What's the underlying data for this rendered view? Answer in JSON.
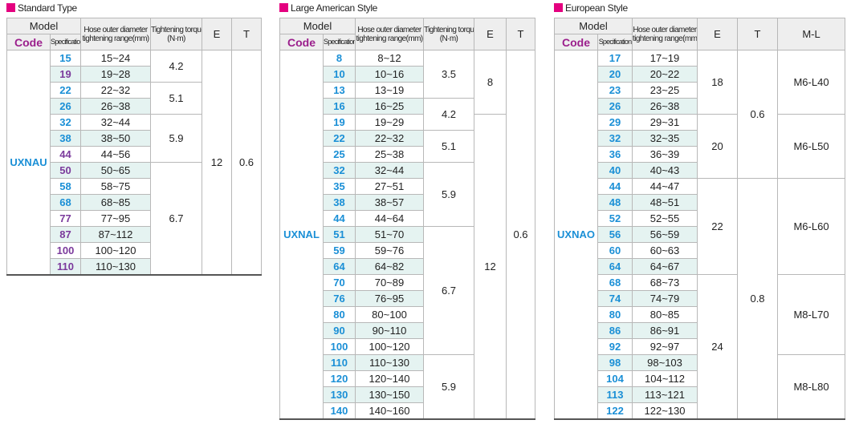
{
  "tables": [
    {
      "title": "Standard Type",
      "header": {
        "model": "Model",
        "code": "Code",
        "specification": "Specification",
        "columns": [
          {
            "lines": [
              "Hose outer diameter",
              "tightening range(mm)"
            ]
          },
          {
            "lines": [
              "Tightening torque",
              "(N·m)"
            ]
          },
          {
            "lines": [
              "E"
            ]
          },
          {
            "lines": [
              "T"
            ]
          }
        ]
      },
      "code": "UXNAU",
      "rows": [
        {
          "spec": "15",
          "range": "15~24",
          "color": "#1a8fd6"
        },
        {
          "spec": "19",
          "range": "19~28",
          "color": "#7b3a9c"
        },
        {
          "spec": "22",
          "range": "22~32",
          "color": "#1a8fd6"
        },
        {
          "spec": "26",
          "range": "26~38",
          "color": "#1a8fd6"
        },
        {
          "spec": "32",
          "range": "32~44",
          "color": "#1a8fd6"
        },
        {
          "spec": "38",
          "range": "38~50",
          "color": "#1a8fd6"
        },
        {
          "spec": "44",
          "range": "44~56",
          "color": "#7b3a9c"
        },
        {
          "spec": "50",
          "range": "50~65",
          "color": "#7b3a9c"
        },
        {
          "spec": "58",
          "range": "58~75",
          "color": "#1a8fd6"
        },
        {
          "spec": "68",
          "range": "68~85",
          "color": "#1a8fd6"
        },
        {
          "spec": "77",
          "range": "77~95",
          "color": "#7b3a9c"
        },
        {
          "spec": "87",
          "range": "87~112",
          "color": "#7b3a9c"
        },
        {
          "spec": "100",
          "range": "100~120",
          "color": "#7b3a9c"
        },
        {
          "spec": "110",
          "range": "110~130",
          "color": "#7b3a9c"
        }
      ],
      "merged": [
        [
          "4.2",
          null,
          "5.1",
          null,
          "5.9",
          null,
          null,
          "6.7",
          null,
          null,
          null,
          null,
          null,
          null
        ],
        [
          "12",
          null,
          null,
          null,
          null,
          null,
          null,
          null,
          null,
          null,
          null,
          null,
          null,
          null
        ],
        [
          "0.6",
          null,
          null,
          null,
          null,
          null,
          null,
          null,
          null,
          null,
          null,
          null,
          null,
          null
        ]
      ]
    },
    {
      "title": "Large American Style",
      "header": {
        "model": "Model",
        "code": "Code",
        "specification": "Specification",
        "columns": [
          {
            "lines": [
              "Hose outer diameter",
              "tightening range(mm)"
            ]
          },
          {
            "lines": [
              "Tightening torque",
              "(N·m)"
            ]
          },
          {
            "lines": [
              "E"
            ]
          },
          {
            "lines": [
              "T"
            ]
          }
        ]
      },
      "code": "UXNAL",
      "rows": [
        {
          "spec": "8",
          "range": "8~12",
          "color": "#1a8fd6"
        },
        {
          "spec": "10",
          "range": "10~16",
          "color": "#1a8fd6"
        },
        {
          "spec": "13",
          "range": "13~19",
          "color": "#1a8fd6"
        },
        {
          "spec": "16",
          "range": "16~25",
          "color": "#1a8fd6"
        },
        {
          "spec": "19",
          "range": "19~29",
          "color": "#1a8fd6"
        },
        {
          "spec": "22",
          "range": "22~32",
          "color": "#1a8fd6"
        },
        {
          "spec": "25",
          "range": "25~38",
          "color": "#1a8fd6"
        },
        {
          "spec": "32",
          "range": "32~44",
          "color": "#1a8fd6"
        },
        {
          "spec": "35",
          "range": "27~51",
          "color": "#1a8fd6"
        },
        {
          "spec": "38",
          "range": "38~57",
          "color": "#1a8fd6"
        },
        {
          "spec": "44",
          "range": "44~64",
          "color": "#1a8fd6"
        },
        {
          "spec": "51",
          "range": "51~70",
          "color": "#1a8fd6"
        },
        {
          "spec": "59",
          "range": "59~76",
          "color": "#1a8fd6"
        },
        {
          "spec": "64",
          "range": "64~82",
          "color": "#1a8fd6"
        },
        {
          "spec": "70",
          "range": "70~89",
          "color": "#1a8fd6"
        },
        {
          "spec": "76",
          "range": "76~95",
          "color": "#1a8fd6"
        },
        {
          "spec": "80",
          "range": "80~100",
          "color": "#1a8fd6"
        },
        {
          "spec": "90",
          "range": "90~110",
          "color": "#1a8fd6"
        },
        {
          "spec": "100",
          "range": "100~120",
          "color": "#1a8fd6"
        },
        {
          "spec": "110",
          "range": "110~130",
          "color": "#1a8fd6"
        },
        {
          "spec": "120",
          "range": "120~140",
          "color": "#1a8fd6"
        },
        {
          "spec": "130",
          "range": "130~150",
          "color": "#1a8fd6"
        },
        {
          "spec": "140",
          "range": "140~160",
          "color": "#1a8fd6"
        }
      ],
      "merged": [
        [
          "3.5",
          null,
          null,
          "4.2",
          null,
          "5.1",
          null,
          "5.9",
          null,
          null,
          null,
          "6.7",
          null,
          null,
          null,
          null,
          null,
          null,
          null,
          "5.9",
          null,
          null,
          null
        ],
        [
          "8",
          null,
          null,
          null,
          "12",
          null,
          null,
          null,
          null,
          null,
          null,
          null,
          null,
          null,
          null,
          null,
          null,
          null,
          null,
          null,
          null,
          null,
          null
        ],
        [
          "0.6",
          null,
          null,
          null,
          null,
          null,
          null,
          null,
          null,
          null,
          null,
          null,
          null,
          null,
          null,
          null,
          null,
          null,
          null,
          null,
          null,
          null,
          null
        ]
      ]
    },
    {
      "title": "European Style",
      "header": {
        "model": "Model",
        "code": "Code",
        "specification": "Specification",
        "columns": [
          {
            "lines": [
              "Hose outer diameter",
              "tightening range(mm)"
            ]
          },
          {
            "lines": [
              "E"
            ]
          },
          {
            "lines": [
              "T"
            ]
          },
          {
            "lines": [
              "M-L"
            ]
          }
        ]
      },
      "code": "UXNAO",
      "rows": [
        {
          "spec": "17",
          "range": "17~19",
          "color": "#1a8fd6"
        },
        {
          "spec": "20",
          "range": "20~22",
          "color": "#1a8fd6"
        },
        {
          "spec": "23",
          "range": "23~25",
          "color": "#1a8fd6"
        },
        {
          "spec": "26",
          "range": "26~38",
          "color": "#1a8fd6"
        },
        {
          "spec": "29",
          "range": "29~31",
          "color": "#1a8fd6"
        },
        {
          "spec": "32",
          "range": "32~35",
          "color": "#1a8fd6"
        },
        {
          "spec": "36",
          "range": "36~39",
          "color": "#1a8fd6"
        },
        {
          "spec": "40",
          "range": "40~43",
          "color": "#1a8fd6"
        },
        {
          "spec": "44",
          "range": "44~47",
          "color": "#1a8fd6"
        },
        {
          "spec": "48",
          "range": "48~51",
          "color": "#1a8fd6"
        },
        {
          "spec": "52",
          "range": "52~55",
          "color": "#1a8fd6"
        },
        {
          "spec": "56",
          "range": "56~59",
          "color": "#1a8fd6"
        },
        {
          "spec": "60",
          "range": "60~63",
          "color": "#1a8fd6"
        },
        {
          "spec": "64",
          "range": "64~67",
          "color": "#1a8fd6"
        },
        {
          "spec": "68",
          "range": "68~73",
          "color": "#1a8fd6"
        },
        {
          "spec": "74",
          "range": "74~79",
          "color": "#1a8fd6"
        },
        {
          "spec": "80",
          "range": "80~85",
          "color": "#1a8fd6"
        },
        {
          "spec": "86",
          "range": "86~91",
          "color": "#1a8fd6"
        },
        {
          "spec": "92",
          "range": "92~97",
          "color": "#1a8fd6"
        },
        {
          "spec": "98",
          "range": "98~103",
          "color": "#1a8fd6"
        },
        {
          "spec": "104",
          "range": "104~112",
          "color": "#1a8fd6"
        },
        {
          "spec": "113",
          "range": "113~121",
          "color": "#1a8fd6"
        },
        {
          "spec": "122",
          "range": "122~130",
          "color": "#1a8fd6"
        }
      ],
      "merged": [
        [
          "18",
          null,
          null,
          null,
          "20",
          null,
          null,
          null,
          "22",
          null,
          null,
          null,
          null,
          null,
          "24",
          null,
          null,
          null,
          null,
          null,
          null,
          null,
          null
        ],
        [
          "0.6",
          null,
          null,
          null,
          null,
          null,
          null,
          null,
          "0.8",
          null,
          null,
          null,
          null,
          null,
          null,
          null,
          null,
          null,
          null,
          null,
          null,
          null,
          null
        ],
        [
          "M6-L40",
          null,
          null,
          null,
          "M6-L50",
          null,
          null,
          null,
          "M6-L60",
          null,
          null,
          null,
          null,
          null,
          "M8-L70",
          null,
          null,
          null,
          null,
          "M8-L80",
          null,
          null,
          null
        ]
      ]
    }
  ]
}
